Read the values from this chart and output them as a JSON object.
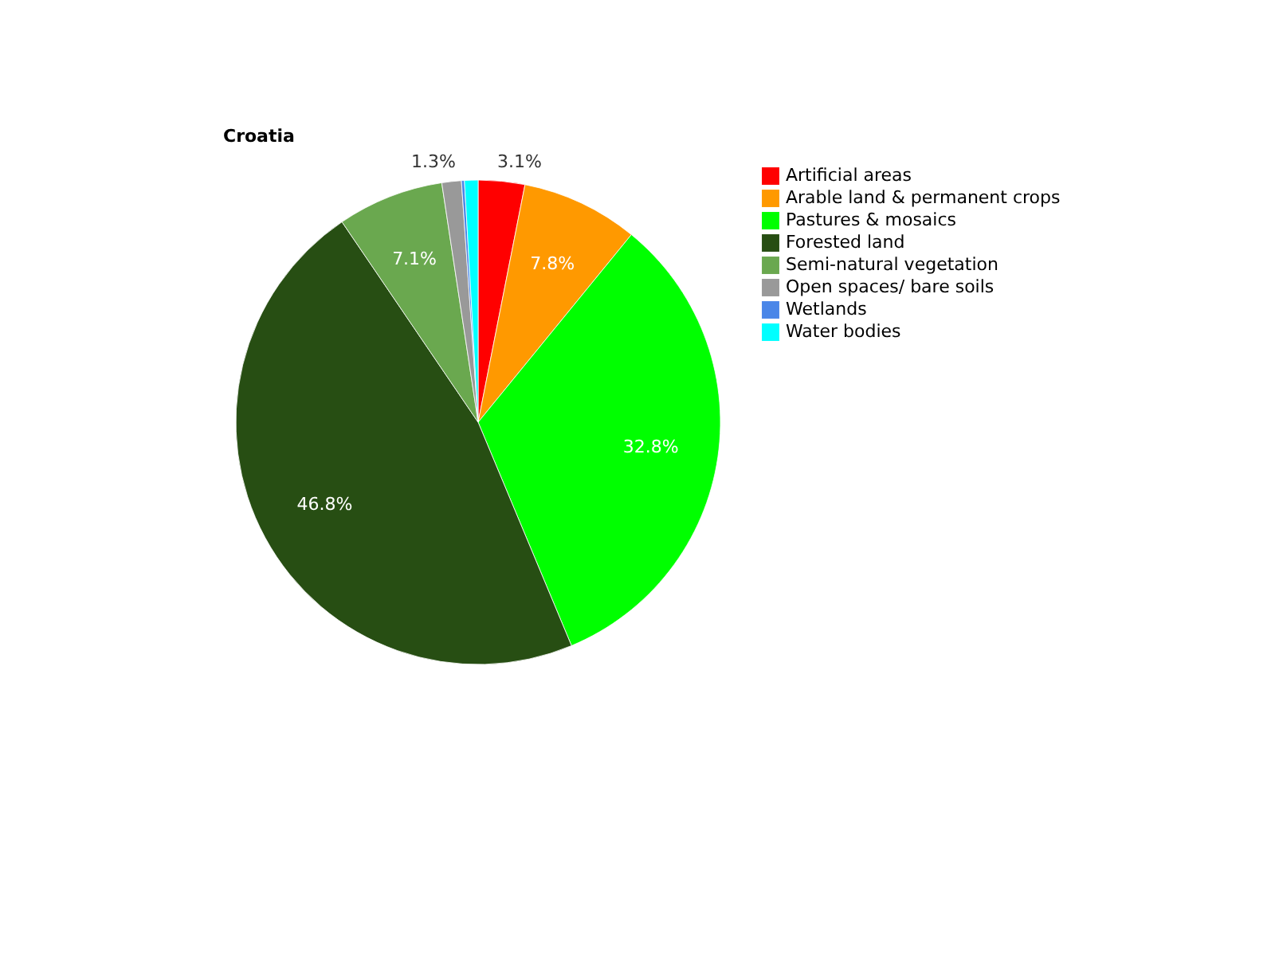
{
  "chart_data": {
    "type": "pie",
    "title": "Croatia",
    "categories": [
      "Artificial areas",
      "Arable land & permanent crops",
      "Pastures & mosaics",
      "Forested land",
      "Semi-natural vegetation",
      "Open spaces/ bare soils",
      "Wetlands",
      "Water bodies"
    ],
    "values": [
      3.1,
      7.8,
      32.8,
      46.8,
      7.1,
      1.3,
      0.2,
      0.9
    ],
    "colors": [
      "#ff0000",
      "#ff9900",
      "#00ff00",
      "#274e13",
      "#6aa84f",
      "#999999",
      "#4a86e8",
      "#00ffff"
    ],
    "value_labels": [
      "3.1%",
      "7.8%",
      "32.8%",
      "46.8%",
      "7.1%",
      "1.3%",
      null,
      null
    ],
    "legend": "right"
  }
}
